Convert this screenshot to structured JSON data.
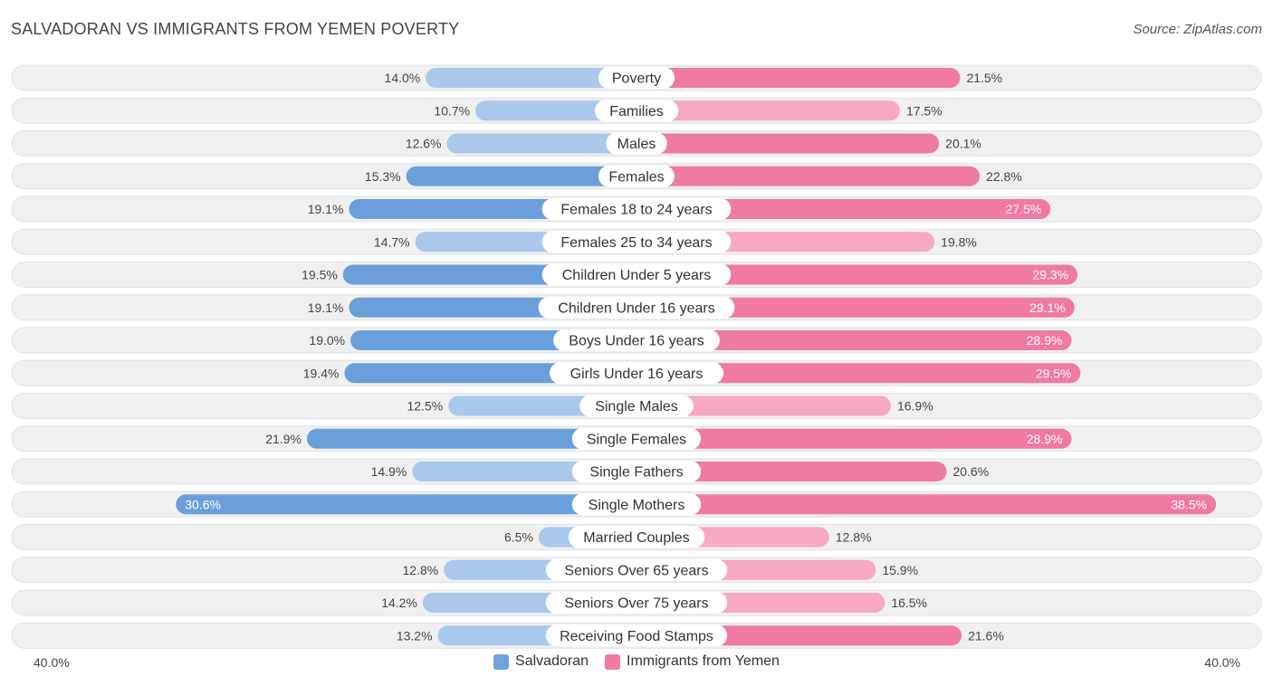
{
  "header": {
    "title": "SALVADORAN VS IMMIGRANTS FROM YEMEN POVERTY",
    "source": "Source: ZipAtlas.com"
  },
  "axis": {
    "left_label": "40.0%",
    "right_label": "40.0%"
  },
  "legend": [
    {
      "label": "Salvadoran",
      "color": "#6fa3dc"
    },
    {
      "label": "Immigrants from Yemen",
      "color": "#f07ba0"
    }
  ],
  "colors": {
    "left_strong": "#6a9fdb",
    "left_light": "#a9c8ec",
    "right_strong": "#f07aa0",
    "right_light": "#f6a9c1",
    "row_bg": "#f0f0f0"
  },
  "chart_data": {
    "type": "bar",
    "orientation": "horizontal-diverging",
    "title": "SALVADORAN VS IMMIGRANTS FROM YEMEN POVERTY",
    "xlim": [
      0,
      40
    ],
    "unit": "%",
    "categories": [
      "Poverty",
      "Families",
      "Males",
      "Females",
      "Females 18 to 24 years",
      "Females 25 to 34 years",
      "Children Under 5 years",
      "Children Under 16 years",
      "Boys Under 16 years",
      "Girls Under 16 years",
      "Single Males",
      "Single Females",
      "Single Fathers",
      "Single Mothers",
      "Married Couples",
      "Seniors Over 65 years",
      "Seniors Over 75 years",
      "Receiving Food Stamps"
    ],
    "series": [
      {
        "name": "Salvadoran",
        "values": [
          14.0,
          10.7,
          12.6,
          15.3,
          19.1,
          14.7,
          19.5,
          19.1,
          19.0,
          19.4,
          12.5,
          21.9,
          14.9,
          30.6,
          6.5,
          12.8,
          14.2,
          13.2
        ],
        "labels": [
          "14.0%",
          "10.7%",
          "12.6%",
          "15.3%",
          "19.1%",
          "14.7%",
          "19.5%",
          "19.1%",
          "19.0%",
          "19.4%",
          "12.5%",
          "21.9%",
          "14.9%",
          "30.6%",
          "6.5%",
          "12.8%",
          "14.2%",
          "13.2%"
        ]
      },
      {
        "name": "Immigrants from Yemen",
        "values": [
          21.5,
          17.5,
          20.1,
          22.8,
          27.5,
          19.8,
          29.3,
          29.1,
          28.9,
          29.5,
          16.9,
          28.9,
          20.6,
          38.5,
          12.8,
          15.9,
          16.5,
          21.6
        ],
        "labels": [
          "21.5%",
          "17.5%",
          "20.1%",
          "22.8%",
          "27.5%",
          "19.8%",
          "29.3%",
          "29.1%",
          "28.9%",
          "29.5%",
          "16.9%",
          "28.9%",
          "20.6%",
          "38.5%",
          "12.8%",
          "15.9%",
          "16.5%",
          "21.6%"
        ]
      }
    ]
  }
}
